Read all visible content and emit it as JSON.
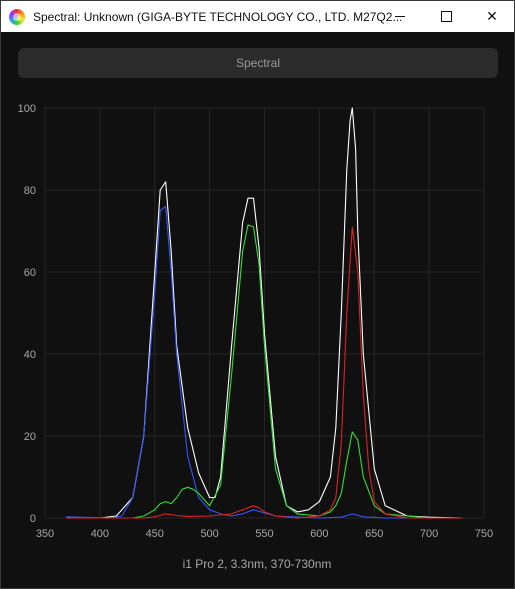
{
  "window": {
    "title": "Spectral: Unknown (GIGA-BYTE TECHNOLOGY CO., LTD. M27Q2...",
    "minimize_label": "",
    "maximize_label": "",
    "close_label": "✕"
  },
  "tab": {
    "label": "Spectral"
  },
  "chart_data": {
    "type": "line",
    "xlabel": "i1 Pro 2, 3.3nm, 370-730nm",
    "ylabel": "",
    "xlim": [
      350,
      750
    ],
    "ylim": [
      0,
      100
    ],
    "xticks": [
      350,
      400,
      450,
      500,
      550,
      600,
      650,
      700,
      750
    ],
    "yticks": [
      0,
      20,
      40,
      60,
      80,
      100
    ],
    "grid": true,
    "series": [
      {
        "color": "#ffffff",
        "x": [
          370,
          400,
          415,
          430,
          440,
          450,
          455,
          460,
          465,
          470,
          480,
          490,
          500,
          505,
          510,
          520,
          530,
          535,
          540,
          545,
          550,
          560,
          570,
          580,
          590,
          600,
          610,
          615,
          620,
          625,
          628,
          630,
          633,
          635,
          640,
          650,
          660,
          680,
          700,
          730
        ],
        "y": [
          0.2,
          0,
          0.5,
          5,
          20,
          60,
          80,
          82,
          65,
          42,
          22,
          11,
          5,
          5,
          10,
          42,
          72,
          78,
          78,
          66,
          45,
          15,
          3,
          1.5,
          2,
          4,
          10,
          22,
          50,
          85,
          97,
          100,
          90,
          70,
          40,
          12,
          3,
          0.5,
          0.2,
          0
        ]
      },
      {
        "color": "#3355ff",
        "x": [
          370,
          410,
          420,
          430,
          440,
          450,
          455,
          460,
          465,
          470,
          480,
          490,
          500,
          510,
          520,
          530,
          540,
          560,
          600,
          620,
          630,
          640,
          660,
          730
        ],
        "y": [
          0.3,
          0,
          0.5,
          5,
          20,
          55,
          75,
          76,
          60,
          40,
          15,
          5,
          2,
          1,
          0.5,
          1,
          2,
          0.5,
          0,
          0.2,
          1,
          0.3,
          0,
          0
        ]
      },
      {
        "color": "#33dd33",
        "x": [
          370,
          430,
          440,
          450,
          455,
          460,
          465,
          470,
          475,
          480,
          485,
          490,
          500,
          510,
          520,
          530,
          535,
          540,
          545,
          550,
          560,
          570,
          580,
          600,
          610,
          615,
          620,
          625,
          630,
          635,
          640,
          650,
          660,
          700,
          730
        ],
        "y": [
          0,
          0,
          0.5,
          2,
          3.5,
          4,
          3.5,
          5,
          7,
          7.5,
          7,
          6,
          3,
          8,
          35,
          65,
          71.5,
          71,
          62,
          42,
          12,
          3,
          1,
          0.5,
          1.5,
          3,
          6,
          14,
          21,
          19,
          10,
          3,
          1,
          0,
          0
        ]
      },
      {
        "color": "#dd2222",
        "x": [
          370,
          440,
          450,
          460,
          470,
          480,
          500,
          520,
          530,
          540,
          545,
          550,
          560,
          580,
          600,
          610,
          615,
          620,
          625,
          630,
          635,
          640,
          645,
          650,
          660,
          680,
          730
        ],
        "y": [
          0,
          0,
          0.3,
          1,
          0.6,
          0.4,
          0.5,
          1,
          2,
          3,
          2.5,
          1.5,
          0.5,
          0,
          0.5,
          2,
          5,
          18,
          50,
          71,
          60,
          30,
          12,
          4,
          1,
          0,
          0
        ]
      }
    ]
  }
}
